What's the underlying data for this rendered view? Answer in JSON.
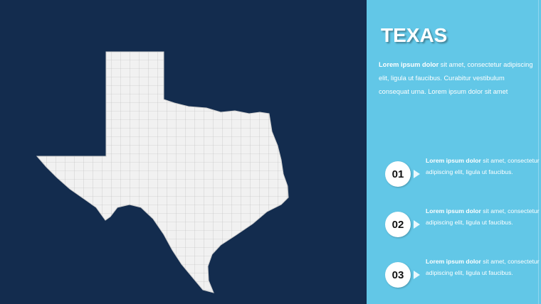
{
  "slide": {
    "background": "#132c4e",
    "panel_color": "#62c7e7"
  },
  "map": {
    "region": "Texas",
    "fill": "#f1f1f1",
    "border": "#b8b8b8"
  },
  "panel": {
    "title": "TEXAS",
    "description": {
      "bold": "Lorem ipsum dolor",
      "text": " sit amet, consectetur adipiscing elit, ligula ut faucibus. Curabitur vestibulum consequat urna. Lorem ipsum dolor sit amet"
    },
    "items": [
      {
        "number": "01",
        "bold": "Lorem ipsum dolor",
        "text": " sit amet, consectetur adipiscing elit, ligula ut faucibus."
      },
      {
        "number": "02",
        "bold": "Lorem ipsum dolor",
        "text": " sit amet, consectetur adipiscing elit, ligula ut faucibus."
      },
      {
        "number": "03",
        "bold": "Lorem ipsum dolor",
        "text": " sit amet, consectetur adipiscing elit, ligula ut faucibus."
      }
    ]
  }
}
